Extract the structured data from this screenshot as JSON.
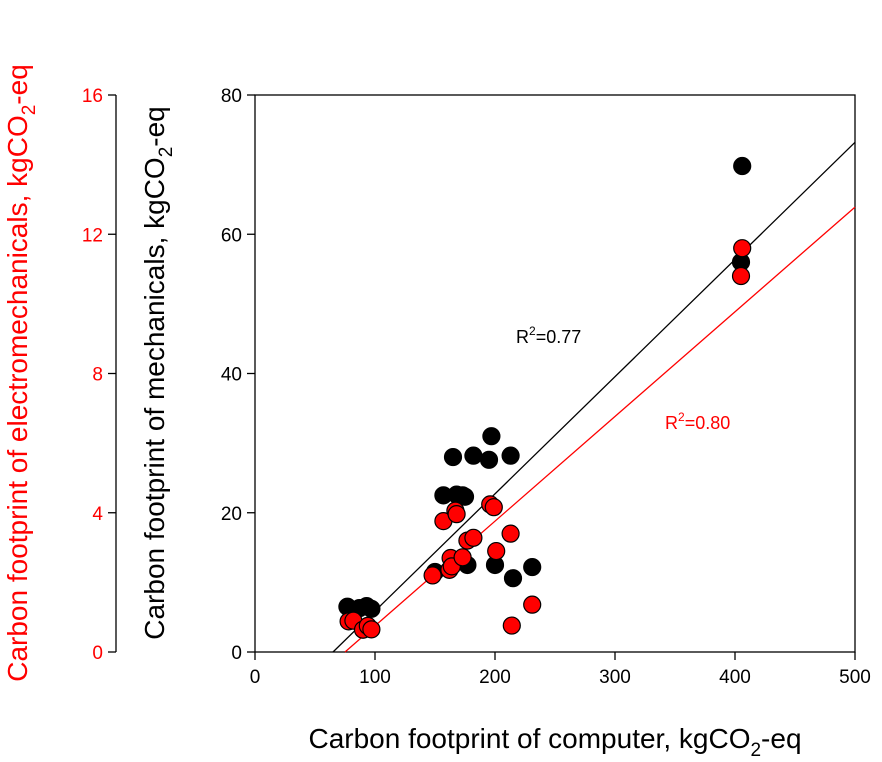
{
  "chart_data": {
    "type": "scatter",
    "xlabel_main": "Carbon footprint of computer, kgCO",
    "xlabel_sub": "2",
    "xlabel_tail": "-eq",
    "y_left_label_main": "Carbon footprint of electromechanicals, kgCO",
    "y_left_label_sub": "2",
    "y_left_label_tail": "-eq",
    "y_right_label_main": "Carbon footprint of mechanicals, kgCO",
    "y_right_label_sub": "2",
    "y_right_label_tail": "-eq",
    "xlim": [
      0,
      500
    ],
    "ylim_mechanicals": [
      0,
      80
    ],
    "ylim_electromechanicals": [
      0,
      16
    ],
    "x_ticks": [
      0,
      100,
      200,
      300,
      400,
      500
    ],
    "y_mechanicals_ticks": [
      0,
      20,
      40,
      60,
      80
    ],
    "y_electromechanicals_ticks": [
      0,
      4,
      8,
      12,
      16
    ],
    "grid": false,
    "colors": {
      "mechanicals": "#000000",
      "electromechanicals": "#ff0000",
      "electro_stroke": "#000000"
    },
    "series": [
      {
        "name": "mechanicals",
        "axis": "mechanicals",
        "color": "#000000",
        "points": [
          {
            "x": 77,
            "y": 6.5
          },
          {
            "x": 87,
            "y": 6.3
          },
          {
            "x": 93,
            "y": 6.6
          },
          {
            "x": 97,
            "y": 6.2
          },
          {
            "x": 150,
            "y": 11.5
          },
          {
            "x": 157,
            "y": 22.5
          },
          {
            "x": 165,
            "y": 28.0
          },
          {
            "x": 168,
            "y": 22.6
          },
          {
            "x": 173,
            "y": 22.5
          },
          {
            "x": 175,
            "y": 22.3
          },
          {
            "x": 177,
            "y": 12.5
          },
          {
            "x": 182,
            "y": 28.2
          },
          {
            "x": 195,
            "y": 27.6
          },
          {
            "x": 197,
            "y": 31.0
          },
          {
            "x": 200,
            "y": 12.5
          },
          {
            "x": 213,
            "y": 28.2
          },
          {
            "x": 215,
            "y": 10.6
          },
          {
            "x": 231,
            "y": 12.2
          },
          {
            "x": 405,
            "y": 56.0
          },
          {
            "x": 406,
            "y": 69.8
          }
        ]
      },
      {
        "name": "electromechanicals",
        "axis": "electromechanicals",
        "color": "#ff0000",
        "points": [
          {
            "x": 78,
            "y": 0.88
          },
          {
            "x": 82,
            "y": 0.9
          },
          {
            "x": 90,
            "y": 0.64
          },
          {
            "x": 94,
            "y": 0.75
          },
          {
            "x": 97,
            "y": 0.65
          },
          {
            "x": 148,
            "y": 2.2
          },
          {
            "x": 157,
            "y": 3.76
          },
          {
            "x": 162,
            "y": 2.36
          },
          {
            "x": 163,
            "y": 2.7
          },
          {
            "x": 164,
            "y": 2.46
          },
          {
            "x": 167,
            "y": 4.06
          },
          {
            "x": 168,
            "y": 3.96
          },
          {
            "x": 173,
            "y": 2.72
          },
          {
            "x": 177,
            "y": 3.2
          },
          {
            "x": 182,
            "y": 3.28
          },
          {
            "x": 196,
            "y": 4.24
          },
          {
            "x": 199,
            "y": 4.16
          },
          {
            "x": 201,
            "y": 2.9
          },
          {
            "x": 213,
            "y": 3.4
          },
          {
            "x": 214,
            "y": 0.76
          },
          {
            "x": 231,
            "y": 1.36
          },
          {
            "x": 405,
            "y": 10.8
          },
          {
            "x": 406,
            "y": 11.6
          }
        ]
      }
    ],
    "fits": [
      {
        "name": "mechanicals-fit",
        "axis": "mechanicals",
        "color": "#000000",
        "x0": 65,
        "y0": 0,
        "x1": 500,
        "y1": 73.2
      },
      {
        "name": "electromechanicals-fit",
        "axis": "electromechanicals",
        "color": "#ff0000",
        "x0": 75,
        "y0": 0,
        "x1": 500,
        "y1": 12.78
      }
    ],
    "annotations": [
      {
        "name": "r2-mechanicals",
        "pre": "R",
        "sup": "2",
        "post": "=0.77",
        "color": "#000000"
      },
      {
        "name": "r2-electromechanicals",
        "pre": "R",
        "sup": "2",
        "post": "=0.80",
        "color": "#ff0000"
      }
    ]
  }
}
